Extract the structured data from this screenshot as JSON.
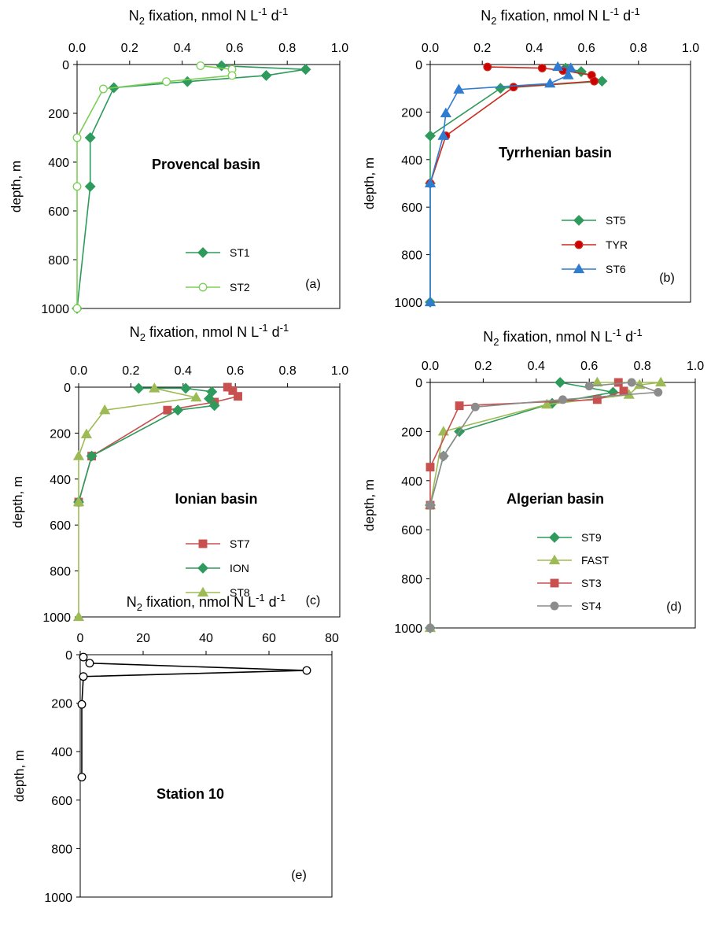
{
  "chart_data": [
    {
      "type": "line",
      "panel": "(a)",
      "title_main": "N",
      "title_sub": "2",
      "title_rest": " fixation, nmol N L",
      "title_sup": "-1",
      "title_end": " d",
      "title_sup2": "-1",
      "ylabel": "depth, m",
      "annotation": "Provencal basin",
      "xlim": [
        0,
        1
      ],
      "ylim": [
        0,
        1000
      ],
      "xticks": [
        "0.0",
        "0.2",
        "0.4",
        "0.6",
        "0.8",
        "1.0"
      ],
      "yticks": [
        "0",
        "200",
        "400",
        "600",
        "800",
        "1000"
      ],
      "y_inverted": true,
      "legend_position": "bottom-right",
      "series": [
        {
          "name": "ST1",
          "color": "#2e9a5c",
          "marker": "diamond",
          "fill": "#2e9a5c",
          "points": [
            [
              0.55,
              5
            ],
            [
              0.87,
              20
            ],
            [
              0.72,
              45
            ],
            [
              0.42,
              70
            ],
            [
              0.14,
              95
            ],
            [
              0.05,
              300
            ],
            [
              0.05,
              500
            ],
            [
              0.0,
              1000
            ]
          ]
        },
        {
          "name": "ST2",
          "color": "#7ccf55",
          "marker": "circle",
          "fill": "#ffffff",
          "points": [
            [
              0.47,
              5
            ],
            [
              0.59,
              20
            ],
            [
              0.59,
              45
            ],
            [
              0.34,
              70
            ],
            [
              0.1,
              100
            ],
            [
              0.0,
              300
            ],
            [
              0.0,
              500
            ],
            [
              0.0,
              1000
            ]
          ]
        }
      ]
    },
    {
      "type": "line",
      "panel": "(b)",
      "title_main": "N",
      "title_sub": "2",
      "title_rest": " fixation, nmol N L",
      "title_sup": "-1",
      "title_end": " d",
      "title_sup2": "-1",
      "ylabel": "depth, m",
      "annotation": "Tyrrhenian basin",
      "xlim": [
        0,
        1
      ],
      "ylim": [
        0,
        1000
      ],
      "xticks": [
        "0.0",
        "0.2",
        "0.4",
        "0.6",
        "0.8",
        "1.0"
      ],
      "yticks": [
        "0",
        "200",
        "400",
        "600",
        "800",
        "1000"
      ],
      "y_inverted": true,
      "legend_position": "bottom-right",
      "series": [
        {
          "name": "ST5",
          "color": "#2e9a5c",
          "marker": "diamond",
          "fill": "#2e9a5c",
          "points": [
            [
              0.52,
              15
            ],
            [
              0.58,
              30
            ],
            [
              0.66,
              70
            ],
            [
              0.27,
              100
            ],
            [
              0.0,
              300
            ],
            [
              0.0,
              500
            ],
            [
              0.0,
              1000
            ]
          ]
        },
        {
          "name": "TYR",
          "color": "#cc2a1e",
          "marker": "circle",
          "fill": "#cc0000",
          "points": [
            [
              0.22,
              10
            ],
            [
              0.43,
              15
            ],
            [
              0.51,
              25
            ],
            [
              0.62,
              45
            ],
            [
              0.63,
              70
            ],
            [
              0.32,
              95
            ],
            [
              0.06,
              300
            ],
            [
              0.0,
              500
            ]
          ]
        },
        {
          "name": "ST6",
          "color": "#2f7cd0",
          "marker": "triangle",
          "fill": "#2f7cd0",
          "points": [
            [
              0.49,
              10
            ],
            [
              0.54,
              15
            ],
            [
              0.53,
              45
            ],
            [
              0.46,
              80
            ],
            [
              0.11,
              105
            ],
            [
              0.06,
              205
            ],
            [
              0.05,
              300
            ],
            [
              0.0,
              500
            ],
            [
              0.0,
              1000
            ]
          ]
        }
      ]
    },
    {
      "type": "line",
      "panel": "(c)",
      "title_main": "N",
      "title_sub": "2",
      "title_rest": " fixation, nmol N L",
      "title_sup": "-1",
      "title_end": " d",
      "title_sup2": "-1",
      "ylabel": "depth, m",
      "annotation": "Ionian basin",
      "xlim": [
        0,
        1
      ],
      "ylim": [
        0,
        1000
      ],
      "xticks": [
        "0.0",
        "0.2",
        "0.4",
        "0.6",
        "0.8",
        "1.0"
      ],
      "yticks": [
        "0",
        "200",
        "400",
        "600",
        "800",
        "1000"
      ],
      "y_inverted": true,
      "legend_position": "bottom-right",
      "series": [
        {
          "name": "ST7",
          "color": "#c8504f",
          "marker": "square",
          "fill": "#c8504f",
          "points": [
            [
              0.57,
              0
            ],
            [
              0.59,
              15
            ],
            [
              0.61,
              40
            ],
            [
              0.52,
              65
            ],
            [
              0.34,
              100
            ],
            [
              0.05,
              300
            ],
            [
              0.0,
              500
            ]
          ]
        },
        {
          "name": "ION",
          "color": "#2e9a5c",
          "marker": "diamond",
          "fill": "#2e9a5c",
          "points": [
            [
              0.23,
              5
            ],
            [
              0.41,
              5
            ],
            [
              0.51,
              20
            ],
            [
              0.5,
              50
            ],
            [
              0.52,
              80
            ],
            [
              0.38,
              100
            ],
            [
              0.05,
              300
            ],
            [
              0.0,
              500
            ]
          ]
        },
        {
          "name": "ST8",
          "color": "#9dbb55",
          "marker": "triangle",
          "fill": "#9dbb55",
          "points": [
            [
              0.29,
              5
            ],
            [
              0.45,
              45
            ],
            [
              0.1,
              100
            ],
            [
              0.03,
              205
            ],
            [
              0.0,
              300
            ],
            [
              0.0,
              500
            ],
            [
              0.0,
              1000
            ]
          ]
        }
      ]
    },
    {
      "type": "line",
      "panel": "(d)",
      "title_main": "N",
      "title_sub": "2",
      "title_rest": " fixation, nmol N L",
      "title_sup": "-1",
      "title_end": " d",
      "title_sup2": "-1",
      "ylabel": "depth, m",
      "annotation": "Algerian basin",
      "xlim": [
        0,
        1
      ],
      "ylim": [
        0,
        1000
      ],
      "xticks": [
        "0.0",
        "0.2",
        "0.4",
        "0.6",
        "0.8",
        "1.0"
      ],
      "yticks": [
        "0",
        "200",
        "400",
        "600",
        "800",
        "1000"
      ],
      "y_inverted": true,
      "legend_position": "bottom-right",
      "series": [
        {
          "name": "ST9",
          "color": "#2e9a5c",
          "marker": "diamond",
          "fill": "#2e9a5c",
          "points": [
            [
              0.49,
              0
            ],
            [
              0.69,
              40
            ],
            [
              0.46,
              85
            ],
            [
              0.11,
              200
            ],
            [
              0.05,
              300
            ],
            [
              0.0,
              500
            ],
            [
              0.0,
              1000
            ]
          ]
        },
        {
          "name": "FAST",
          "color": "#9dbb55",
          "marker": "triangle",
          "fill": "#9dbb55",
          "points": [
            [
              0.63,
              0
            ],
            [
              0.87,
              0
            ],
            [
              0.79,
              10
            ],
            [
              0.75,
              50
            ],
            [
              0.44,
              90
            ],
            [
              0.05,
              200
            ],
            [
              0.0,
              500
            ],
            [
              0.0,
              1000
            ]
          ]
        },
        {
          "name": "ST3",
          "color": "#c8504f",
          "marker": "square",
          "fill": "#c8504f",
          "points": [
            [
              0.71,
              0
            ],
            [
              0.73,
              35
            ],
            [
              0.63,
              70
            ],
            [
              0.11,
              95
            ],
            [
              0.0,
              345
            ],
            [
              0.0,
              500
            ]
          ]
        },
        {
          "name": "ST4",
          "color": "#8c8c8c",
          "marker": "circle",
          "fill": "#8c8c8c",
          "points": [
            [
              0.6,
              15
            ],
            [
              0.76,
              0
            ],
            [
              0.86,
              40
            ],
            [
              0.5,
              70
            ],
            [
              0.17,
              100
            ],
            [
              0.05,
              300
            ],
            [
              0.0,
              500
            ],
            [
              0.0,
              1000
            ]
          ]
        }
      ]
    },
    {
      "type": "line",
      "panel": "(e)",
      "title_main": "N",
      "title_sub": "2",
      "title_rest": " fixation, nmol N L",
      "title_sup": "-1",
      "title_end": " d",
      "title_sup2": "-1",
      "ylabel": "depth, m",
      "annotation": "Station 10",
      "xlim": [
        0,
        80
      ],
      "ylim": [
        0,
        1000
      ],
      "xticks": [
        "0",
        "20",
        "40",
        "60",
        "80"
      ],
      "yticks": [
        "0",
        "200",
        "400",
        "600",
        "800",
        "1000"
      ],
      "y_inverted": true,
      "legend_position": "none",
      "series": [
        {
          "name": "",
          "color": "#000000",
          "marker": "circle",
          "fill": "#ffffff",
          "points": [
            [
              1,
              10
            ],
            [
              3,
              35
            ],
            [
              72,
              65
            ],
            [
              1,
              90
            ],
            [
              0.5,
              205
            ],
            [
              0.5,
              505
            ]
          ]
        }
      ]
    }
  ]
}
